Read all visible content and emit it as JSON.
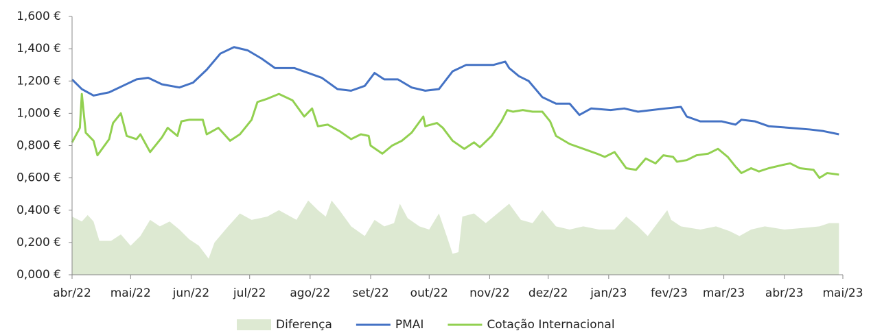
{
  "chart_data": {
    "type": "line",
    "xlim": [
      0,
      395
    ],
    "xticks": [
      {
        "value": 0,
        "label": "abr/22"
      },
      {
        "value": 30,
        "label": "mai/22"
      },
      {
        "value": 61,
        "label": "jun/22"
      },
      {
        "value": 91,
        "label": "jul/22"
      },
      {
        "value": 122,
        "label": "ago/22"
      },
      {
        "value": 153,
        "label": "set/22"
      },
      {
        "value": 183,
        "label": "out/22"
      },
      {
        "value": 214,
        "label": "nov/22"
      },
      {
        "value": 244,
        "label": "dez/22"
      },
      {
        "value": 275,
        "label": "jan/23"
      },
      {
        "value": 306,
        "label": "fev/23"
      },
      {
        "value": 334,
        "label": "mar/23"
      },
      {
        "value": 365,
        "label": "abr/23"
      },
      {
        "value": 395,
        "label": "mai/23"
      }
    ],
    "ylim": [
      0,
      1.6
    ],
    "yticks": [
      {
        "value": 0,
        "label": "0,000 €"
      },
      {
        "value": 0.2,
        "label": "0,200 €"
      },
      {
        "value": 0.4,
        "label": "0,400 €"
      },
      {
        "value": 0.6,
        "label": "0,600 €"
      },
      {
        "value": 0.8,
        "label": "0,800 €"
      },
      {
        "value": 1.0,
        "label": "1,000 €"
      },
      {
        "value": 1.2,
        "label": "1,200 €"
      },
      {
        "value": 1.4,
        "label": "1,400 €"
      },
      {
        "value": 1.6,
        "label": "1,600 €"
      }
    ],
    "grid": false,
    "legend": "bottom",
    "series": [
      {
        "name": "Diferença",
        "kind": "area",
        "color": "#dde9d2",
        "x": [
          0,
          5,
          8,
          11,
          14,
          20,
          25,
          30,
          35,
          40,
          45,
          50,
          55,
          60,
          65,
          70,
          73,
          80,
          86,
          92,
          100,
          106,
          115,
          121,
          126,
          130,
          133,
          137,
          143,
          150,
          155,
          160,
          165,
          168,
          172,
          178,
          183,
          188,
          192,
          195,
          198,
          200,
          206,
          212,
          218,
          224,
          230,
          236,
          241,
          248,
          255,
          262,
          270,
          278,
          284,
          290,
          295,
          300,
          305,
          307,
          312,
          322,
          330,
          337,
          342,
          348,
          355,
          365,
          375,
          383,
          388,
          393
        ],
        "values": [
          0.36,
          0.33,
          0.37,
          0.33,
          0.21,
          0.21,
          0.25,
          0.18,
          0.24,
          0.34,
          0.3,
          0.33,
          0.28,
          0.22,
          0.18,
          0.1,
          0.2,
          0.3,
          0.38,
          0.34,
          0.36,
          0.4,
          0.34,
          0.46,
          0.4,
          0.36,
          0.46,
          0.4,
          0.3,
          0.24,
          0.34,
          0.3,
          0.32,
          0.44,
          0.35,
          0.3,
          0.28,
          0.38,
          0.24,
          0.13,
          0.14,
          0.36,
          0.38,
          0.32,
          0.38,
          0.44,
          0.34,
          0.32,
          0.4,
          0.3,
          0.28,
          0.3,
          0.28,
          0.28,
          0.36,
          0.3,
          0.24,
          0.32,
          0.4,
          0.34,
          0.3,
          0.28,
          0.3,
          0.27,
          0.24,
          0.28,
          0.3,
          0.28,
          0.29,
          0.3,
          0.32,
          0.32
        ]
      },
      {
        "name": "PMAI",
        "kind": "line",
        "color": "#4472c4",
        "x": [
          0,
          5,
          11,
          19,
          26,
          33,
          39,
          46,
          55,
          62,
          69,
          76,
          83,
          90,
          97,
          104,
          114,
          121,
          128,
          136,
          143,
          150,
          155,
          160,
          167,
          174,
          181,
          188,
          195,
          202,
          209,
          216,
          222,
          224,
          229,
          234,
          241,
          248,
          255,
          260,
          266,
          276,
          283,
          290,
          297,
          304,
          312,
          315,
          322,
          333,
          340,
          343,
          350,
          357,
          368,
          378,
          385,
          393
        ],
        "values": [
          1.21,
          1.15,
          1.11,
          1.13,
          1.17,
          1.21,
          1.22,
          1.18,
          1.16,
          1.19,
          1.27,
          1.37,
          1.41,
          1.39,
          1.34,
          1.28,
          1.28,
          1.25,
          1.22,
          1.15,
          1.14,
          1.17,
          1.25,
          1.21,
          1.21,
          1.16,
          1.14,
          1.15,
          1.26,
          1.3,
          1.3,
          1.3,
          1.32,
          1.28,
          1.23,
          1.2,
          1.1,
          1.06,
          1.06,
          0.99,
          1.03,
          1.02,
          1.03,
          1.01,
          1.02,
          1.03,
          1.04,
          0.98,
          0.95,
          0.95,
          0.93,
          0.96,
          0.95,
          0.92,
          0.91,
          0.9,
          0.89,
          0.87
        ]
      },
      {
        "name": "Cotação Internacional",
        "kind": "line",
        "color": "#92d050",
        "x": [
          0,
          4,
          5,
          7,
          11,
          13,
          19,
          21,
          25,
          28,
          33,
          35,
          40,
          46,
          49,
          54,
          56,
          60,
          67,
          69,
          75,
          81,
          86,
          92,
          95,
          100,
          106,
          113,
          119,
          123,
          126,
          131,
          137,
          143,
          148,
          152,
          153,
          159,
          164,
          169,
          174,
          180,
          181,
          187,
          190,
          195,
          201,
          206,
          209,
          215,
          220,
          223,
          226,
          231,
          236,
          241,
          245,
          248,
          255,
          262,
          269,
          273,
          278,
          284,
          289,
          294,
          299,
          303,
          308,
          310,
          315,
          320,
          326,
          331,
          336,
          340,
          343,
          348,
          352,
          357,
          364,
          368,
          373,
          380,
          383,
          387,
          393
        ],
        "values": [
          0.82,
          0.91,
          1.12,
          0.88,
          0.83,
          0.74,
          0.84,
          0.94,
          1.0,
          0.86,
          0.84,
          0.87,
          0.76,
          0.85,
          0.91,
          0.86,
          0.95,
          0.96,
          0.96,
          0.87,
          0.91,
          0.83,
          0.87,
          0.96,
          1.07,
          1.09,
          1.12,
          1.08,
          0.98,
          1.03,
          0.92,
          0.93,
          0.89,
          0.84,
          0.87,
          0.86,
          0.8,
          0.75,
          0.8,
          0.83,
          0.88,
          0.98,
          0.92,
          0.94,
          0.91,
          0.83,
          0.78,
          0.82,
          0.79,
          0.86,
          0.95,
          1.02,
          1.01,
          1.02,
          1.01,
          1.01,
          0.95,
          0.86,
          0.81,
          0.78,
          0.75,
          0.73,
          0.76,
          0.66,
          0.65,
          0.72,
          0.69,
          0.74,
          0.73,
          0.7,
          0.71,
          0.74,
          0.75,
          0.78,
          0.73,
          0.67,
          0.63,
          0.66,
          0.64,
          0.66,
          0.68,
          0.69,
          0.66,
          0.65,
          0.6,
          0.63,
          0.62
        ]
      }
    ]
  }
}
